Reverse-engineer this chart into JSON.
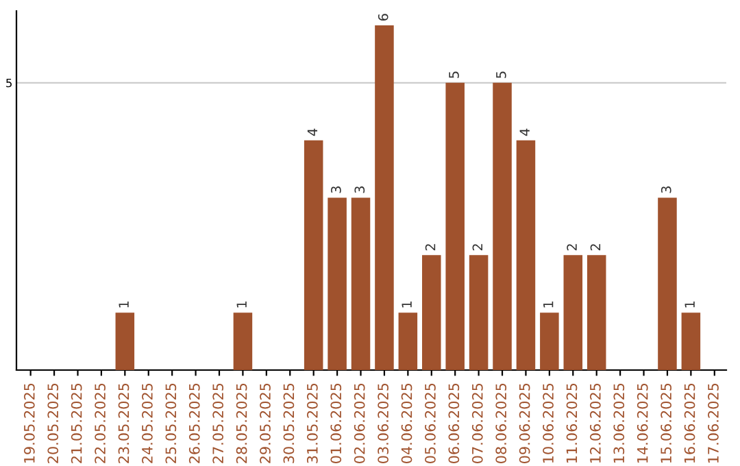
{
  "chart_data": {
    "type": "bar",
    "categories": [
      "19.05.2025",
      "20.05.2025",
      "21.05.2025",
      "22.05.2025",
      "23.05.2025",
      "24.05.2025",
      "25.05.2025",
      "26.05.2025",
      "27.05.2025",
      "28.05.2025",
      "29.05.2025",
      "30.05.2025",
      "31.05.2025",
      "01.06.2025",
      "02.06.2025",
      "03.06.2025",
      "04.06.2025",
      "05.06.2025",
      "06.06.2025",
      "07.06.2025",
      "08.06.2025",
      "09.06.2025",
      "10.06.2025",
      "11.06.2025",
      "12.06.2025",
      "13.06.2025",
      "14.06.2025",
      "15.06.2025",
      "16.06.2025",
      "17.06.2025"
    ],
    "values": [
      0,
      0,
      0,
      0,
      1,
      0,
      0,
      0,
      0,
      1,
      0,
      0,
      4,
      3,
      3,
      6,
      1,
      2,
      5,
      2,
      5,
      4,
      1,
      2,
      2,
      0,
      0,
      3,
      1,
      0
    ],
    "value_labels": [
      null,
      null,
      null,
      null,
      "1",
      null,
      null,
      null,
      null,
      "1",
      null,
      null,
      "4",
      "3",
      "3",
      "6",
      "1",
      "2",
      "5",
      "2",
      "5",
      "4",
      "1",
      "2",
      "2",
      null,
      null,
      "3",
      "1",
      null
    ],
    "color": "#a0522d",
    "ylim": [
      0,
      6.25
    ],
    "yticks": [
      5
    ],
    "grid": "y"
  }
}
